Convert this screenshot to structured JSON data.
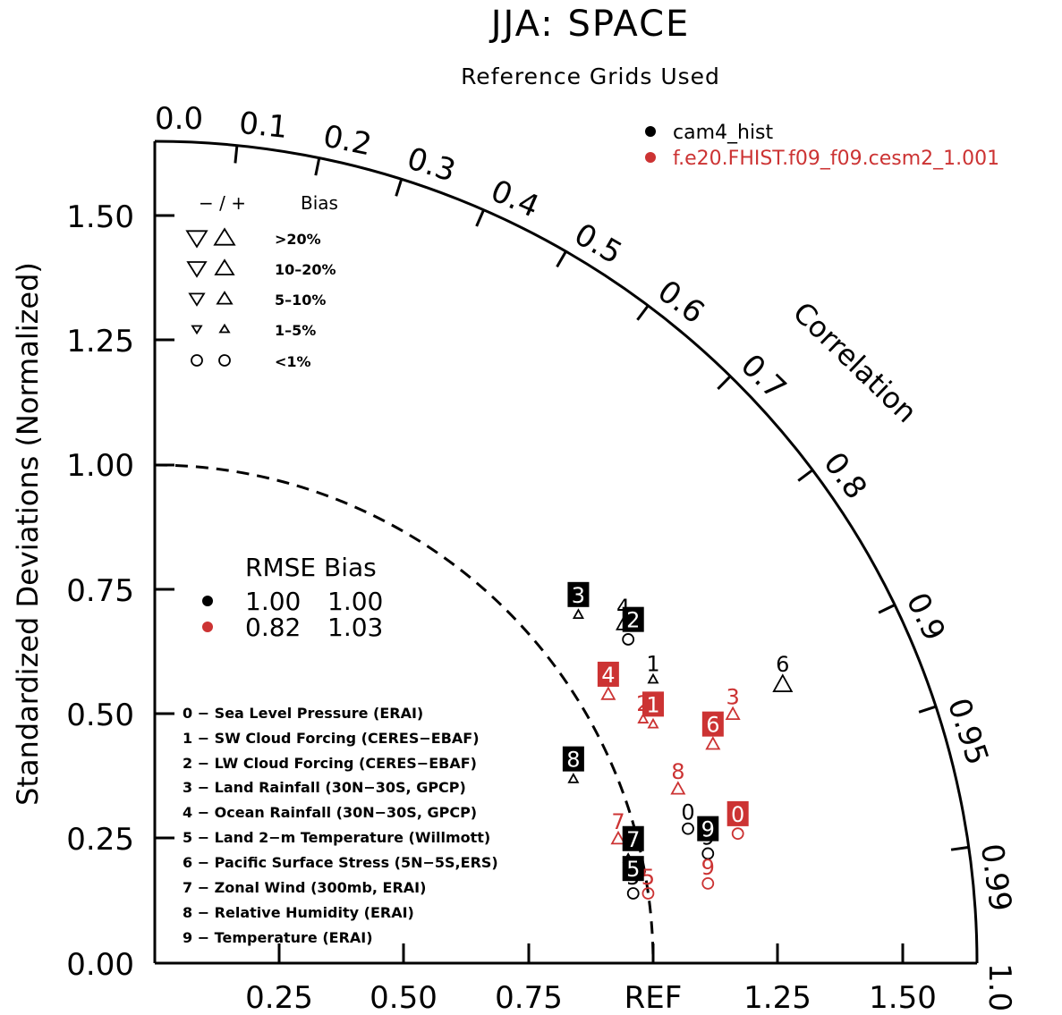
{
  "chart_data": {
    "type": "scatter",
    "subtype": "taylor-diagram",
    "title": "JJA: SPACE",
    "subtitle": "Reference Grids Used",
    "ylabel": "Standardized Deviations (Normalized)",
    "xlabel_ref": "REF",
    "correlation_label": "Correlation",
    "std_range": [
      0,
      1.65
    ],
    "y_ticks": [
      "0.00",
      "0.25",
      "0.50",
      "0.75",
      "1.00",
      "1.25",
      "1.50"
    ],
    "x_ticks": [
      "0.25",
      "0.50",
      "0.75",
      "REF",
      "1.25",
      "1.50"
    ],
    "correlation_ticks": [
      "0.0",
      "0.1",
      "0.2",
      "0.3",
      "0.4",
      "0.5",
      "0.6",
      "0.7",
      "0.8",
      "0.9",
      "0.95",
      "0.99",
      "1.0"
    ],
    "series": [
      {
        "name": "cam4_hist",
        "color": "#000000",
        "points": [
          {
            "id": "0",
            "x": 1.07,
            "y": 0.27,
            "bias": "<1%"
          },
          {
            "id": "1",
            "x": 1.0,
            "y": 0.57,
            "bias": "1-5%"
          },
          {
            "id": "2",
            "x": 0.95,
            "y": 0.65,
            "bias": "<1%"
          },
          {
            "id": "3",
            "x": 0.85,
            "y": 0.7,
            "bias": "1-5%"
          },
          {
            "id": "4",
            "x": 0.94,
            "y": 0.68,
            "bias": "5-10%"
          },
          {
            "id": "5",
            "x": 0.96,
            "y": 0.14,
            "bias": "<1%"
          },
          {
            "id": "6",
            "x": 1.26,
            "y": 0.56,
            "bias": "10-20%"
          },
          {
            "id": "7",
            "x": 0.95,
            "y": 0.21,
            "bias": "1-5%"
          },
          {
            "id": "8",
            "x": 0.84,
            "y": 0.37,
            "bias": "1-5%"
          },
          {
            "id": "9",
            "x": 1.11,
            "y": 0.22,
            "bias": "<1%"
          }
        ]
      },
      {
        "name": "f.e20.FHIST.f09_f09.cesm2_1.001",
        "color": "#cc3333",
        "points": [
          {
            "id": "0",
            "x": 1.17,
            "y": 0.26,
            "bias": "<1%"
          },
          {
            "id": "1",
            "x": 1.0,
            "y": 0.48,
            "bias": "1-5%"
          },
          {
            "id": "2",
            "x": 0.98,
            "y": 0.49,
            "bias": "1-5%"
          },
          {
            "id": "3",
            "x": 1.16,
            "y": 0.5,
            "bias": "5-10%"
          },
          {
            "id": "4",
            "x": 0.91,
            "y": 0.54,
            "bias": "5-10%"
          },
          {
            "id": "5",
            "x": 0.99,
            "y": 0.14,
            "bias": "<1%"
          },
          {
            "id": "6",
            "x": 1.12,
            "y": 0.44,
            "bias": "5-10%"
          },
          {
            "id": "7",
            "x": 0.93,
            "y": 0.25,
            "bias": "5-10%"
          },
          {
            "id": "8",
            "x": 1.05,
            "y": 0.35,
            "bias": "5-10%"
          },
          {
            "id": "9",
            "x": 1.11,
            "y": 0.16,
            "bias": "<1%"
          }
        ]
      }
    ],
    "highlighted": [
      {
        "id": "3",
        "series": "cam4_hist",
        "x": 0.85,
        "y": 0.74
      },
      {
        "id": "2",
        "series": "cam4_hist",
        "x": 0.96,
        "y": 0.69
      },
      {
        "id": "8",
        "series": "cam4_hist",
        "x": 0.84,
        "y": 0.41
      },
      {
        "id": "7",
        "series": "cam4_hist",
        "x": 0.96,
        "y": 0.25
      },
      {
        "id": "5",
        "series": "cam4_hist",
        "x": 0.96,
        "y": 0.19
      },
      {
        "id": "9",
        "series": "cam4_hist",
        "x": 1.11,
        "y": 0.27
      },
      {
        "id": "4",
        "series": "f.e20.FHIST.f09_f09.cesm2_1.001",
        "x": 0.91,
        "y": 0.58
      },
      {
        "id": "1",
        "series": "f.e20.FHIST.f09_f09.cesm2_1.001",
        "x": 1.0,
        "y": 0.52
      },
      {
        "id": "6",
        "series": "f.e20.FHIST.f09_f09.cesm2_1.001",
        "x": 1.12,
        "y": 0.48
      },
      {
        "id": "0",
        "series": "f.e20.FHIST.f09_f09.cesm2_1.001",
        "x": 1.17,
        "y": 0.3
      }
    ],
    "ref_arc": 1.0,
    "bias_legend": {
      "header_signs": "−  /  +",
      "header_label": "Bias",
      "rows": [
        ">20%",
        "10–20%",
        "5–10%",
        "1–5%",
        "<1%"
      ]
    },
    "rmse_table": {
      "header": "RMSE Bias",
      "rows": [
        {
          "color": "#000000",
          "rmse": "1.00",
          "bias": "1.00"
        },
        {
          "color": "#cc3333",
          "rmse": "0.82",
          "bias": "1.03"
        }
      ]
    },
    "variables": [
      "0 − Sea Level Pressure (ERAI)",
      "1 − SW Cloud Forcing (CERES−EBAF)",
      "2 − LW Cloud Forcing (CERES−EBAF)",
      "3 − Land Rainfall (30N−30S, GPCP)",
      "4 − Ocean Rainfall (30N−30S, GPCP)",
      "5 − Land 2−m Temperature (Willmott)",
      "6 − Pacific Surface Stress (5N−5S,ERS)",
      "7 − Zonal Wind (300mb, ERAI)",
      "8 − Relative Humidity (ERAI)",
      "9 − Temperature (ERAI)"
    ]
  }
}
